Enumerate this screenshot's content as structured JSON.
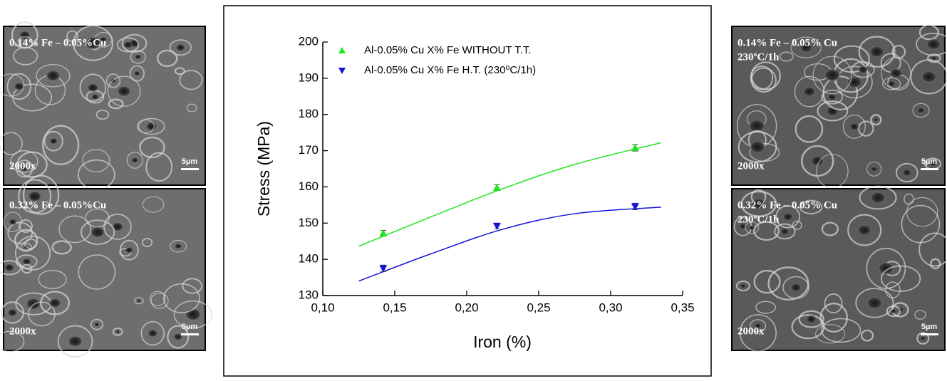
{
  "chart_data": {
    "type": "scatter",
    "x_label": "Iron (%)",
    "y_label": "Stress (MPa)",
    "xlim": [
      0.1,
      0.35
    ],
    "xticks": [
      {
        "value": 0.1,
        "label": "0,10"
      },
      {
        "value": 0.15,
        "label": "0,15"
      },
      {
        "value": 0.2,
        "label": "0,20"
      },
      {
        "value": 0.25,
        "label": "0,25"
      },
      {
        "value": 0.3,
        "label": "0,30"
      },
      {
        "value": 0.35,
        "label": "0,35"
      }
    ],
    "ylim": [
      130,
      200
    ],
    "yticks": [
      130,
      140,
      150,
      160,
      170,
      180,
      190,
      200
    ],
    "x": [
      0.142,
      0.221,
      0.317
    ],
    "series": [
      {
        "name": "Al-0.05% Cu  X% Fe WITHOUT T.T.",
        "color": "#22e622",
        "marker": "triangle-up",
        "values": [
          147.2,
          159.8,
          170.8
        ],
        "errors": [
          0.8,
          0.8,
          0.9
        ],
        "fit": {
          "x": [
            0.125,
            0.175,
            0.225,
            0.275,
            0.335
          ],
          "values": [
            143.6,
            151.7,
            159.5,
            166.2,
            172.2
          ]
        }
      },
      {
        "name": "Al-0.05% Cu  X% Fe H.T. (230⁰C/1h)",
        "color": "#1414dc",
        "marker": "triangle-down",
        "values": [
          137.5,
          149.2,
          154.6
        ],
        "errors": [
          0.9,
          0.8,
          0.9
        ],
        "fit": {
          "x": [
            0.125,
            0.175,
            0.225,
            0.275,
            0.335
          ],
          "values": [
            134.0,
            141.5,
            148.3,
            152.6,
            154.4
          ]
        }
      }
    ]
  },
  "micrographs": [
    {
      "label": "0.14% Fe – 0.05%Cu",
      "magnification": "2000x",
      "scale": "5µm"
    },
    {
      "label": "0.32% Fe – 0.05%Cu",
      "magnification": "2000x",
      "scale": "5µm"
    },
    {
      "label": "0.14% Fe – 0.05% Cu",
      "treatment": "230ºC/1h",
      "magnification": "2000x",
      "scale": "5µm"
    },
    {
      "label": "0.32% Fe – 0.05% Cu",
      "treatment": "230ºC/1h",
      "magnification": "2000x",
      "scale": "5µm"
    }
  ]
}
